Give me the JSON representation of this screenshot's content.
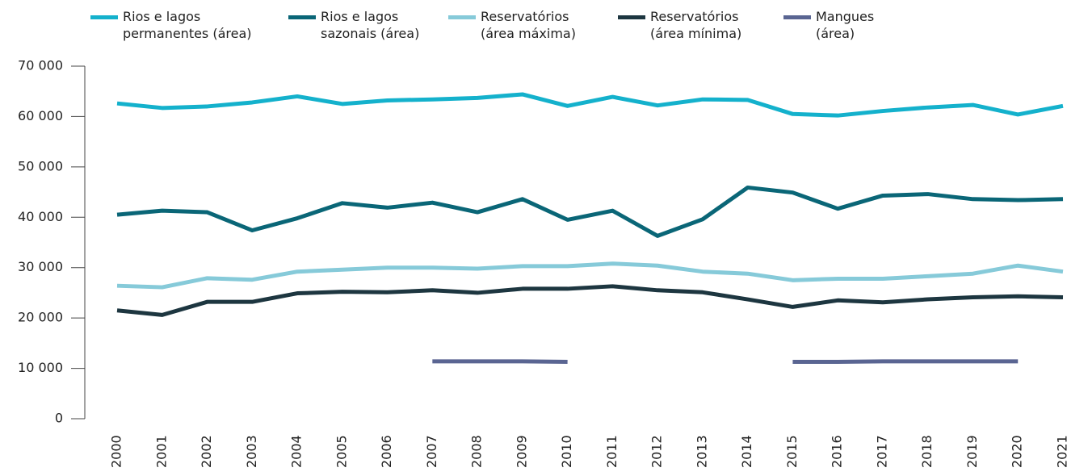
{
  "chart_data": {
    "type": "line",
    "categories": [
      "2000",
      "2001",
      "2002",
      "2003",
      "2004",
      "2005",
      "2006",
      "2007",
      "2008",
      "2009",
      "2010",
      "2011",
      "2012",
      "2013",
      "2014",
      "2015",
      "2016",
      "2017",
      "2018",
      "2019",
      "2020",
      "2021"
    ],
    "series": [
      {
        "name": "Rios e lagos\npermanentes (área)",
        "color": "#14b1cc",
        "values": [
          62600,
          61700,
          62000,
          62800,
          64000,
          62500,
          63200,
          63400,
          63700,
          64400,
          62100,
          63900,
          62200,
          63400,
          63300,
          60500,
          60200,
          61100,
          61800,
          62300,
          60400,
          62100
        ]
      },
      {
        "name": "Rios e lagos\nsazonais (área)",
        "color": "#0a6677",
        "values": [
          40500,
          41300,
          41000,
          37400,
          39800,
          42800,
          41900,
          42900,
          41000,
          43600,
          39500,
          41300,
          36300,
          39600,
          45900,
          44900,
          41700,
          44300,
          44600,
          43600,
          43400,
          43600
        ]
      },
      {
        "name": "Reservatórios\n(área máxima)",
        "color": "#86cad9",
        "values": [
          26400,
          26100,
          27900,
          27600,
          29200,
          29600,
          30000,
          30000,
          29800,
          30300,
          30300,
          30800,
          30400,
          29200,
          28800,
          27500,
          27800,
          27800,
          28300,
          28800,
          30400,
          29200
        ]
      },
      {
        "name": "Reservatórios\n(área mínima)",
        "color": "#1d3640",
        "values": [
          21500,
          20600,
          23200,
          23200,
          24900,
          25200,
          25100,
          25500,
          25000,
          25800,
          25800,
          26300,
          25500,
          25100,
          23700,
          22200,
          23500,
          23100,
          23700,
          24100,
          24300,
          24100
        ]
      },
      {
        "name": "Mangues\n(área)",
        "color": "#5a6592",
        "values": [
          null,
          null,
          null,
          null,
          null,
          null,
          null,
          11400,
          11400,
          11400,
          11300,
          null,
          null,
          null,
          null,
          11300,
          11300,
          11400,
          11400,
          11400,
          11400,
          null
        ]
      }
    ],
    "ylim": [
      0,
      70000
    ],
    "yticks": [
      0,
      {
        "value": 10000,
        "label": "10 000"
      },
      {
        "value": 20000,
        "label": "20 000"
      },
      {
        "value": 30000,
        "label": "30 000"
      },
      {
        "value": 40000,
        "label": "40 000"
      },
      {
        "value": 50000,
        "label": "50 000"
      },
      {
        "value": 60000,
        "label": "60 000"
      },
      {
        "value": 70000,
        "label": "70 000"
      }
    ]
  }
}
